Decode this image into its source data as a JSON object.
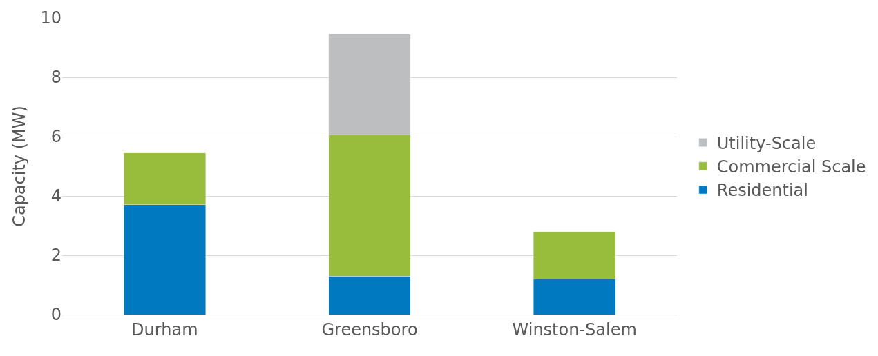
{
  "chart_data": {
    "type": "bar",
    "stacked": true,
    "ylabel": "Capacity (MW)",
    "categories": [
      "Durham",
      "Greensboro",
      "Winston-Salem"
    ],
    "series": [
      {
        "name": "Residential",
        "color": "#0079c1",
        "values": [
          3.7,
          1.3,
          1.2
        ]
      },
      {
        "name": "Commercial Scale",
        "color": "#98bd3c",
        "values": [
          1.75,
          4.75,
          1.6
        ]
      },
      {
        "name": "Utility-Scale",
        "color": "#bcbec0",
        "values": [
          null,
          3.4,
          null
        ]
      }
    ],
    "ylim": [
      0,
      10
    ],
    "yticks": [
      0,
      2,
      4,
      6,
      8,
      10
    ],
    "grid": "y",
    "legend": "right"
  }
}
